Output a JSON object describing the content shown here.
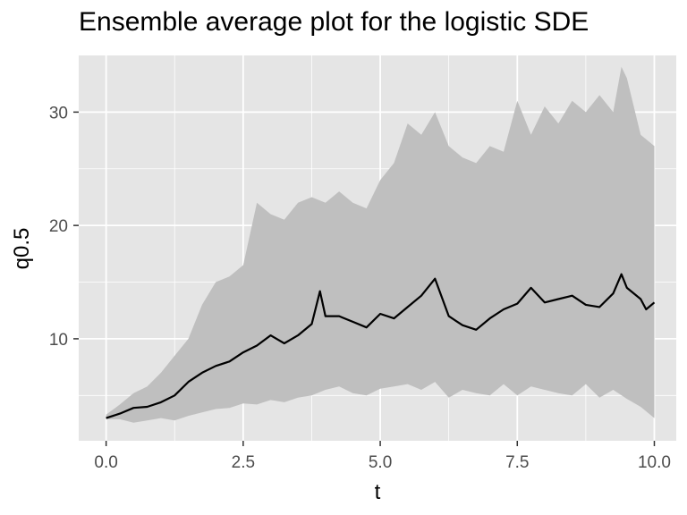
{
  "chart_data": {
    "type": "area",
    "title": "Ensemble average plot for the logistic SDE",
    "xlabel": "t",
    "ylabel": "q0.5",
    "xlim": [
      -0.5,
      10.4
    ],
    "ylim": [
      1,
      35
    ],
    "x_ticks": [
      0,
      2.5,
      5,
      7.5,
      10
    ],
    "x_tick_labels": [
      "0.0",
      "2.5",
      "5.0",
      "7.5",
      "10.0"
    ],
    "y_ticks": [
      10,
      20,
      30
    ],
    "y_tick_labels": [
      "10",
      "20",
      "30"
    ],
    "grid": true,
    "legend": "none",
    "colors": {
      "panel": "#e5e5e5",
      "grid_major": "#ffffff",
      "ribbon": "#bfbfbf",
      "line": "#000000",
      "axis_text": "#4d4d4d"
    },
    "series": [
      {
        "role": "median",
        "x": [
          0.0,
          0.25,
          0.5,
          0.75,
          1.0,
          1.25,
          1.5,
          1.75,
          2.0,
          2.25,
          2.5,
          2.75,
          3.0,
          3.25,
          3.5,
          3.75,
          3.9,
          4.0,
          4.25,
          4.5,
          4.75,
          5.0,
          5.25,
          5.5,
          5.75,
          6.0,
          6.25,
          6.5,
          6.75,
          7.0,
          7.25,
          7.5,
          7.75,
          8.0,
          8.25,
          8.5,
          8.75,
          9.0,
          9.25,
          9.4,
          9.5,
          9.75,
          9.85,
          10.0
        ],
        "y": [
          3.0,
          3.4,
          3.9,
          4.0,
          4.4,
          5.0,
          6.2,
          7.0,
          7.6,
          8.0,
          8.8,
          9.4,
          10.3,
          9.6,
          10.3,
          11.3,
          14.2,
          12.0,
          12.0,
          11.5,
          11.0,
          12.2,
          11.8,
          12.8,
          13.8,
          15.3,
          12.0,
          11.2,
          10.8,
          11.8,
          12.6,
          13.1,
          14.5,
          13.2,
          13.5,
          13.8,
          13.0,
          12.8,
          14.0,
          15.7,
          14.5,
          13.5,
          12.6,
          13.2
        ]
      },
      {
        "role": "upper_band",
        "x": [
          0.0,
          0.25,
          0.5,
          0.75,
          1.0,
          1.25,
          1.5,
          1.75,
          2.0,
          2.25,
          2.5,
          2.75,
          3.0,
          3.25,
          3.5,
          3.75,
          4.0,
          4.25,
          4.5,
          4.75,
          5.0,
          5.25,
          5.5,
          5.75,
          6.0,
          6.25,
          6.5,
          6.75,
          7.0,
          7.25,
          7.5,
          7.75,
          8.0,
          8.25,
          8.5,
          8.75,
          9.0,
          9.25,
          9.4,
          9.5,
          9.75,
          10.0
        ],
        "y": [
          3.3,
          4.2,
          5.2,
          5.8,
          7.0,
          8.5,
          10.0,
          13.0,
          15.0,
          15.5,
          16.5,
          22.0,
          21.0,
          20.5,
          22.0,
          22.5,
          22.0,
          23.0,
          22.0,
          21.5,
          24.0,
          25.5,
          29.0,
          28.0,
          30.0,
          27.0,
          26.0,
          25.5,
          27.0,
          26.5,
          31.0,
          28.0,
          30.5,
          29.0,
          31.0,
          30.0,
          31.5,
          30.0,
          34.0,
          33.0,
          28.0,
          27.0
        ]
      },
      {
        "role": "lower_band",
        "x": [
          0.0,
          0.25,
          0.5,
          0.75,
          1.0,
          1.25,
          1.5,
          1.75,
          2.0,
          2.25,
          2.5,
          2.75,
          3.0,
          3.25,
          3.5,
          3.75,
          4.0,
          4.25,
          4.5,
          4.75,
          5.0,
          5.25,
          5.5,
          5.75,
          6.0,
          6.25,
          6.5,
          6.75,
          7.0,
          7.25,
          7.5,
          7.75,
          8.0,
          8.25,
          8.5,
          8.75,
          9.0,
          9.25,
          9.5,
          9.75,
          10.0
        ],
        "y": [
          2.9,
          2.9,
          2.6,
          2.8,
          3.0,
          2.8,
          3.2,
          3.5,
          3.8,
          3.9,
          4.3,
          4.2,
          4.6,
          4.4,
          4.8,
          5.0,
          5.5,
          5.8,
          5.2,
          5.0,
          5.6,
          5.8,
          6.0,
          5.5,
          6.2,
          4.8,
          5.5,
          5.2,
          5.0,
          6.0,
          5.0,
          5.8,
          5.5,
          5.2,
          5.0,
          6.0,
          4.8,
          5.5,
          4.7,
          4.0,
          3.0
        ]
      }
    ]
  }
}
